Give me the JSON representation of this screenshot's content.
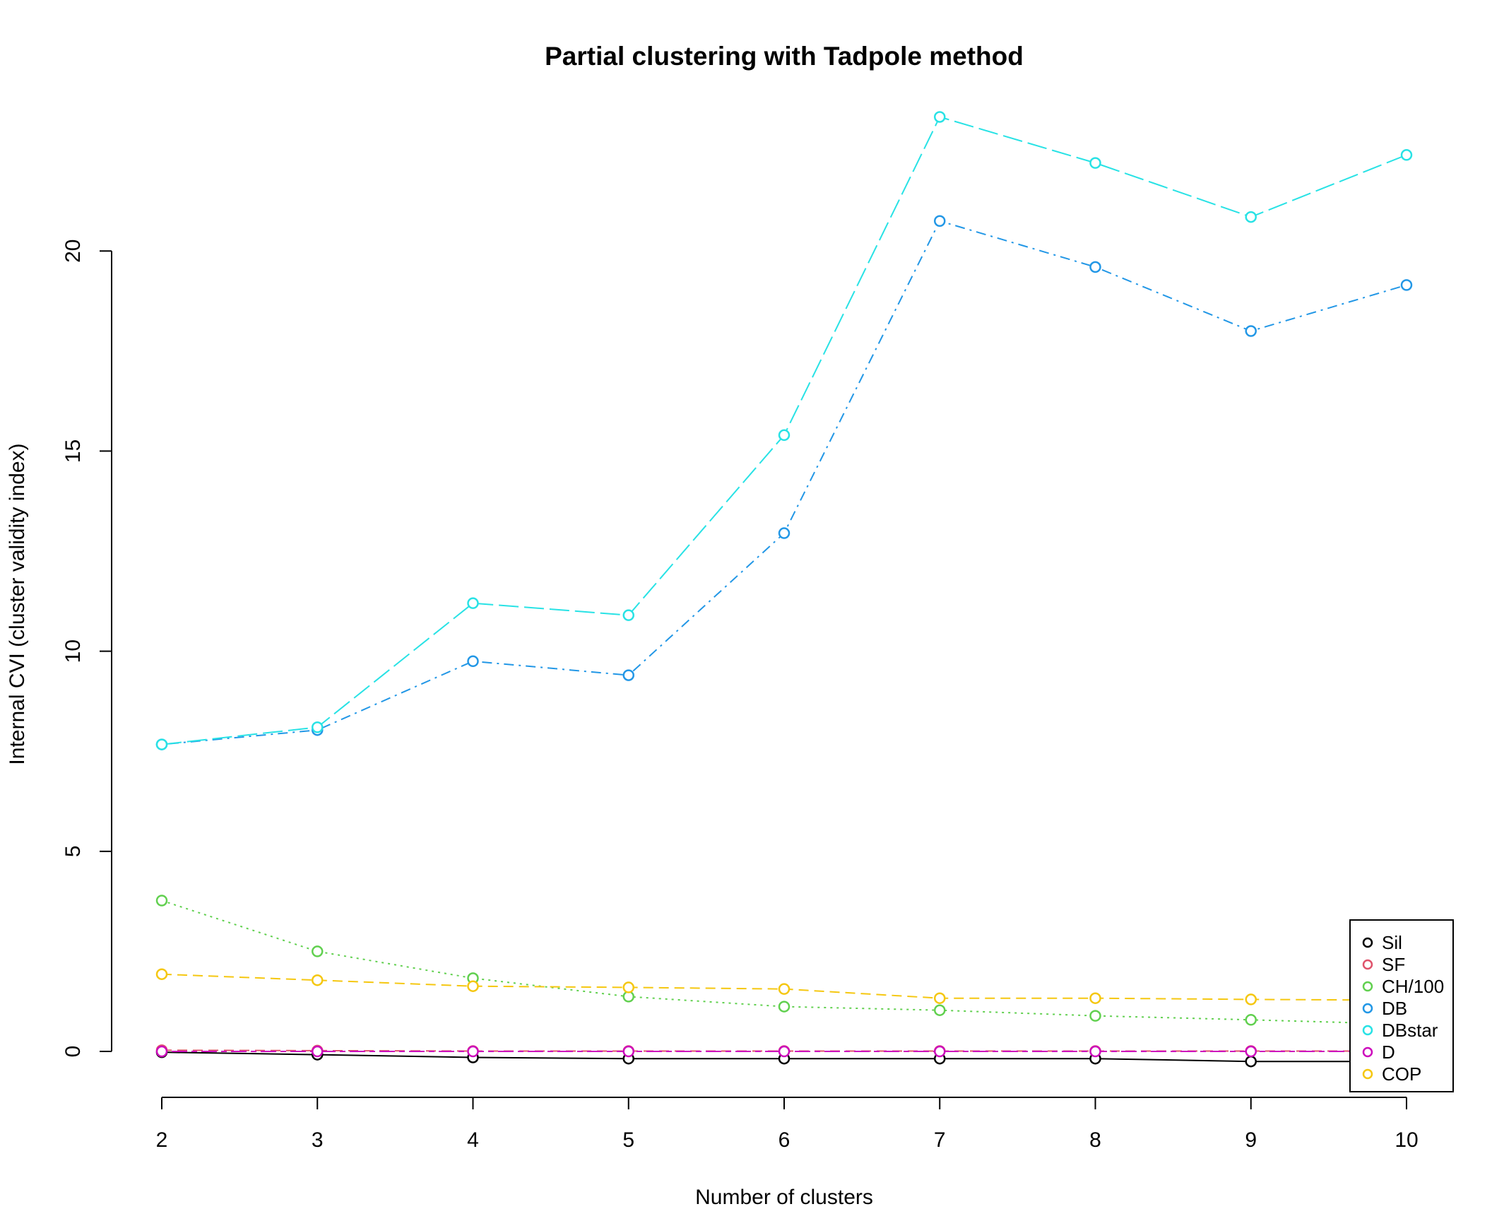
{
  "chart_data": {
    "type": "line",
    "title": "Partial clustering with Tadpole method",
    "xlabel": "Number of clusters",
    "ylabel": "Internal CVI (cluster validity index)",
    "x": [
      2,
      3,
      4,
      5,
      6,
      7,
      8,
      9,
      10
    ],
    "xlim": [
      2,
      10
    ],
    "ylim": [
      -1.2,
      23.8
    ],
    "yticks": [
      0,
      5,
      10,
      15,
      20
    ],
    "xticks": [
      2,
      3,
      4,
      5,
      6,
      7,
      8,
      9,
      10
    ],
    "grid": false,
    "legend_position": "bottom-right",
    "series": [
      {
        "name": "Sil",
        "color": "#000000",
        "dash": "solid",
        "values": [
          -0.02,
          -0.08,
          -0.15,
          -0.18,
          -0.18,
          -0.18,
          -0.18,
          -0.25,
          -0.25
        ]
      },
      {
        "name": "SF",
        "color": "#DF536B",
        "dash": "dashed",
        "values": [
          0.03,
          0.02,
          0.01,
          0.01,
          0.01,
          0.01,
          0.01,
          0.01,
          0.01
        ]
      },
      {
        "name": "CH/100",
        "color": "#61D04F",
        "dash": "dotted",
        "values": [
          3.77,
          2.5,
          1.83,
          1.37,
          1.12,
          1.03,
          0.89,
          0.79,
          0.68
        ]
      },
      {
        "name": "DB",
        "color": "#2297E6",
        "dash": "dotdash",
        "values": [
          7.67,
          8.03,
          9.75,
          9.4,
          12.95,
          20.75,
          19.6,
          18.0,
          19.15
        ]
      },
      {
        "name": "DBstar",
        "color": "#28E2E5",
        "dash": "longdash",
        "values": [
          7.67,
          8.1,
          11.2,
          10.9,
          15.4,
          23.35,
          22.2,
          20.85,
          22.4
        ]
      },
      {
        "name": "D",
        "color": "#CD0BBC",
        "dash": "twodash",
        "values": [
          0.0,
          0.0,
          0.0,
          0.0,
          0.0,
          0.0,
          0.0,
          0.0,
          0.0
        ]
      },
      {
        "name": "COP",
        "color": "#F5C710",
        "dash": "dashed",
        "values": [
          1.93,
          1.78,
          1.63,
          1.6,
          1.56,
          1.33,
          1.33,
          1.3,
          1.28
        ]
      }
    ]
  }
}
